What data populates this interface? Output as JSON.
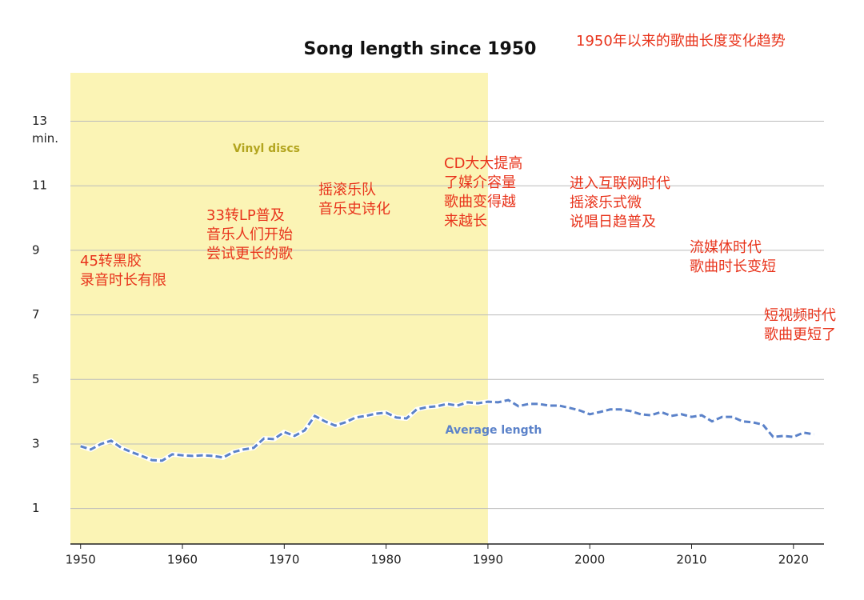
{
  "chart_data": {
    "type": "line",
    "title": "Song length since 1950",
    "subtitle": "1950年以来的歌曲长度变化趋势",
    "y_unit": "min.",
    "x": [
      1950,
      1951,
      1952,
      1953,
      1954,
      1955,
      1956,
      1957,
      1958,
      1959,
      1960,
      1961,
      1962,
      1963,
      1964,
      1965,
      1966,
      1967,
      1968,
      1969,
      1970,
      1971,
      1972,
      1973,
      1974,
      1975,
      1976,
      1977,
      1978,
      1979,
      1980,
      1981,
      1982,
      1983,
      1984,
      1985,
      1986,
      1987,
      1988,
      1989,
      1990,
      1991,
      1992,
      1993,
      1994,
      1995,
      1996,
      1997,
      1998,
      1999,
      2000,
      2001,
      2002,
      2003,
      2004,
      2005,
      2006,
      2007,
      2008,
      2009,
      2010,
      2011,
      2012,
      2013,
      2014,
      2015,
      2016,
      2017,
      2018,
      2019,
      2020,
      2021,
      2022
    ],
    "series": [
      {
        "name": "Average length",
        "color": "#5b82c9",
        "values": [
          2.93,
          2.83,
          3.0,
          3.1,
          2.88,
          2.75,
          2.63,
          2.5,
          2.48,
          2.68,
          2.65,
          2.63,
          2.65,
          2.63,
          2.58,
          2.75,
          2.83,
          2.88,
          3.17,
          3.15,
          3.37,
          3.25,
          3.42,
          3.87,
          3.7,
          3.57,
          3.67,
          3.82,
          3.87,
          3.94,
          3.97,
          3.82,
          3.79,
          4.07,
          4.14,
          4.17,
          4.24,
          4.19,
          4.29,
          4.26,
          4.31,
          4.29,
          4.36,
          4.17,
          4.24,
          4.24,
          4.19,
          4.19,
          4.12,
          4.04,
          3.92,
          3.99,
          4.07,
          4.07,
          4.02,
          3.92,
          3.89,
          3.99,
          3.87,
          3.92,
          3.84,
          3.89,
          3.7,
          3.84,
          3.84,
          3.7,
          3.67,
          3.6,
          3.22,
          3.25,
          3.22,
          3.35,
          3.3
        ]
      }
    ],
    "xlim": [
      1949,
      2023
    ],
    "xticks": [
      1950,
      1960,
      1970,
      1980,
      1990,
      2000,
      2010,
      2020
    ],
    "ylim": [
      0,
      14.5
    ],
    "yticks": [
      1,
      3,
      5,
      7,
      9,
      11,
      13
    ],
    "grid": true,
    "shade": {
      "start": 1949,
      "end": 1990,
      "label": "Vinyl discs",
      "color": "#fbf4b5"
    },
    "annotation_color": "#e8341c",
    "annotations": [
      {
        "lines": [
          "45转黑胶",
          "录音时长有限"
        ]
      },
      {
        "lines": [
          "33转LP普及",
          "音乐人们开始",
          "尝试更长的歌"
        ]
      },
      {
        "lines": [
          "摇滚乐队",
          "音乐史诗化"
        ]
      },
      {
        "lines": [
          "CD大大提高",
          "了媒介容量",
          "歌曲变得越",
          "来越长"
        ]
      },
      {
        "lines": [
          "进入互联网时代",
          "摇滚乐式微",
          "说唱日趋普及"
        ]
      },
      {
        "lines": [
          "流媒体时代",
          "歌曲时长变短"
        ]
      },
      {
        "lines": [
          "短视频时代",
          "歌曲更短了"
        ]
      }
    ]
  }
}
